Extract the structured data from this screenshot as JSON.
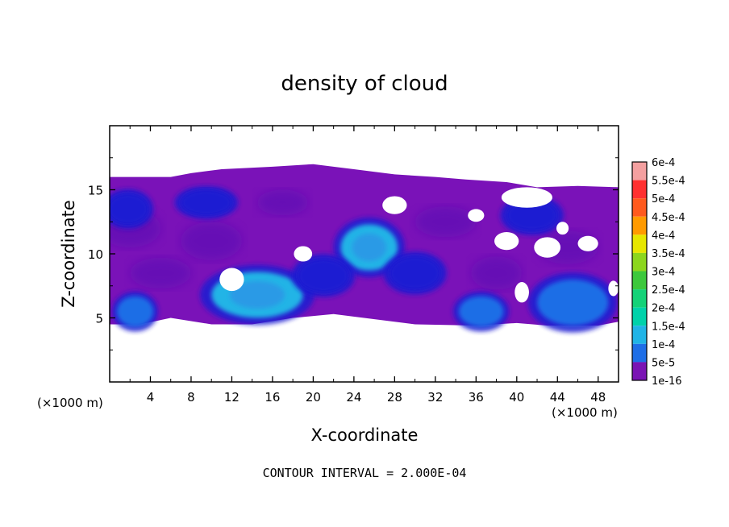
{
  "chart_data": {
    "type": "heatmap",
    "title": "density of cloud",
    "xlabel": "X-coordinate",
    "ylabel": "Z-coordinate",
    "x_unit_left": "(×1000 m)",
    "x_unit_right": "(×1000 m)",
    "xlim": [
      0,
      50
    ],
    "ylim": [
      0,
      20
    ],
    "x_ticks": [
      "4",
      "8",
      "12",
      "16",
      "20",
      "24",
      "28",
      "32",
      "36",
      "40",
      "44",
      "48"
    ],
    "y_ticks": [
      "5",
      "10",
      "15"
    ],
    "footer": "CONTOUR INTERVAL = 2.000E-04",
    "colorbar": {
      "labels": [
        "6e-4",
        "5.5e-4",
        "5e-4",
        "4.5e-4",
        "4e-4",
        "3.5e-4",
        "3e-4",
        "2.5e-4",
        "2e-4",
        "1.5e-4",
        "1e-4",
        "5e-5",
        "1e-16"
      ],
      "colors": [
        "#f4a0a0",
        "#ff3030",
        "#ff5a1e",
        "#ff9a00",
        "#e6e600",
        "#8cd61e",
        "#3cc83c",
        "#14d278",
        "#00d2aa",
        "#20b4e6",
        "#1e6ee6",
        "#1a1ad2",
        "#7a14b4"
      ]
    },
    "cloud_layer": {
      "base_fill": "#7a12b8",
      "z_range": [
        4.5,
        17
      ]
    },
    "cores": [
      {
        "x": 14.5,
        "z": 6.8,
        "rx": 4.5,
        "rz": 1.8,
        "level": "1.5e-4"
      },
      {
        "x": 25.5,
        "z": 10.5,
        "rx": 2.8,
        "rz": 1.8,
        "level": "1.5e-4"
      },
      {
        "x": 2.5,
        "z": 5.5,
        "rx": 1.8,
        "rz": 1.2,
        "level": "1e-4"
      },
      {
        "x": 36.5,
        "z": 5.5,
        "rx": 2.2,
        "rz": 1.2,
        "level": "1e-4"
      },
      {
        "x": 45.5,
        "z": 6.2,
        "rx": 3.5,
        "rz": 1.8,
        "level": "1e-4"
      },
      {
        "x": 1.8,
        "z": 13.5,
        "rx": 2.0,
        "rz": 1.2,
        "level": "5e-5"
      },
      {
        "x": 9.5,
        "z": 14.0,
        "rx": 2.5,
        "rz": 1.0,
        "level": "5e-5"
      },
      {
        "x": 30.0,
        "z": 8.5,
        "rx": 2.5,
        "rz": 1.3,
        "level": "5e-5"
      },
      {
        "x": 21.0,
        "z": 8.3,
        "rx": 2.5,
        "rz": 1.3,
        "level": "5e-5"
      },
      {
        "x": 41.5,
        "z": 13.0,
        "rx": 2.5,
        "rz": 1.2,
        "level": "5e-5"
      }
    ]
  }
}
